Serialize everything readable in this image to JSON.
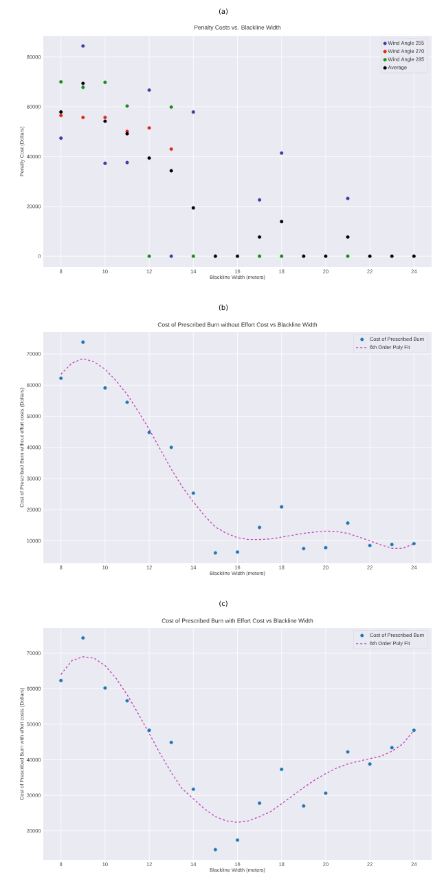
{
  "chart_data": [
    {
      "type": "scatter",
      "title": "Penalty Costs vs. Blackline Width",
      "xlabel": "Blackline Width (meters)",
      "ylabel": "Penalty Cost (Dollars)",
      "annotations": [
        "(a)"
      ],
      "xlim": [
        7.2,
        24.8
      ],
      "xticks": [
        8,
        10,
        12,
        14,
        16,
        18,
        20,
        22,
        24
      ],
      "ylim": [
        -4400,
        88500
      ],
      "yticks": [
        0,
        20000,
        40000,
        60000,
        80000
      ],
      "grid": true,
      "legend": "top right",
      "marker": "circle",
      "series": [
        {
          "name": "Wind Angle 255",
          "color": "#3a3fa8",
          "x": [
            8,
            9,
            10,
            11,
            12,
            13,
            14,
            17,
            18,
            21
          ],
          "values": [
            47400,
            84400,
            37300,
            37600,
            66700,
            0,
            57900,
            22600,
            41400,
            23200
          ]
        },
        {
          "name": "Wind Angle 270",
          "color": "#e0261e",
          "x": [
            8,
            9,
            10,
            11,
            12,
            13
          ],
          "values": [
            56500,
            55700,
            55700,
            50100,
            51500,
            43000
          ]
        },
        {
          "name": "Wind Angle 285",
          "color": "#1a8a1a",
          "x": [
            8,
            9,
            10,
            11,
            12,
            13,
            14,
            17,
            18,
            21
          ],
          "values": [
            70000,
            67800,
            69800,
            60300,
            0,
            59900,
            0,
            0,
            0,
            0
          ]
        },
        {
          "name": "Average",
          "color": "#000000",
          "x": [
            8,
            9,
            10,
            11,
            12,
            13,
            14,
            15,
            16,
            17,
            18,
            19,
            20,
            21,
            22,
            23,
            24
          ],
          "values": [
            57900,
            69400,
            54200,
            49200,
            39400,
            34300,
            19400,
            0,
            0,
            7700,
            13900,
            0,
            0,
            7700,
            0,
            0,
            0
          ]
        }
      ]
    },
    {
      "type": "scatter",
      "title": "Cost of Prescribed Burn without Effort Cost vs Blackline Width",
      "xlabel": "Blackline Width (meters)",
      "ylabel": "Cost of Prescribed Burn without effort costs (Dollars)",
      "annotations": [
        "(b)"
      ],
      "xlim": [
        7.2,
        24.8
      ],
      "xticks": [
        8,
        10,
        12,
        14,
        16,
        18,
        20,
        22,
        24
      ],
      "ylim": [
        2800,
        77100
      ],
      "yticks": [
        10000,
        20000,
        30000,
        40000,
        50000,
        60000,
        70000
      ],
      "grid": true,
      "legend": "top right",
      "marker": "circle",
      "x": [
        8,
        9,
        10,
        11,
        12,
        13,
        14,
        15,
        16,
        17,
        18,
        19,
        20,
        21,
        22,
        23,
        24
      ],
      "series": [
        {
          "name": "Cost of Prescribed Burn",
          "color": "#1f77b4",
          "values": [
            62200,
            73800,
            59100,
            54500,
            44800,
            40000,
            25300,
            6100,
            6400,
            14300,
            20900,
            7500,
            7800,
            15700,
            8500,
            8800,
            9100
          ]
        },
        {
          "name": "6th Order Poly Fit",
          "type": "line",
          "marker": "none",
          "line_style": "dashed",
          "color": "#c43cba",
          "x": [
            8,
            8.5,
            9,
            9.5,
            10,
            10.5,
            11,
            11.5,
            12,
            12.5,
            13,
            13.5,
            14,
            14.5,
            15,
            15.5,
            16,
            16.5,
            17,
            17.5,
            18,
            18.5,
            19,
            19.5,
            20,
            20.5,
            21,
            21.5,
            22,
            22.5,
            23,
            23.5,
            24
          ],
          "values": [
            63500,
            67100,
            68500,
            67500,
            65100,
            61400,
            57000,
            51600,
            45800,
            39400,
            33000,
            27300,
            22500,
            18100,
            14400,
            12400,
            11000,
            10400,
            10400,
            10600,
            11200,
            11800,
            12400,
            12800,
            13100,
            13000,
            12400,
            11200,
            10000,
            8700,
            7600,
            7600,
            9100
          ]
        }
      ]
    },
    {
      "type": "scatter",
      "title": "Cost of Prescribed Burn with Effort Cost vs Blackline Width",
      "xlabel": "Blackline Width (meters)",
      "ylabel": "Cost of Prescribed Burn with effort costs (Dollars)",
      "annotations": [
        "(c)"
      ],
      "xlim": [
        7.2,
        24.8
      ],
      "xticks": [
        8,
        10,
        12,
        14,
        16,
        18,
        20,
        22,
        24
      ],
      "ylim": [
        11800,
        77100
      ],
      "yticks": [
        20000,
        30000,
        40000,
        50000,
        60000,
        70000
      ],
      "grid": true,
      "legend": "top right",
      "marker": "circle",
      "x": [
        8,
        9,
        10,
        11,
        12,
        13,
        14,
        15,
        16,
        17,
        18,
        19,
        20,
        21,
        22,
        23,
        24
      ],
      "series": [
        {
          "name": "Cost of Prescribed Burn",
          "color": "#1f77b4",
          "values": [
            62300,
            74300,
            60200,
            56600,
            48300,
            44900,
            31700,
            14700,
            17400,
            27800,
            37300,
            27000,
            30600,
            42200,
            38800,
            43400,
            48300
          ]
        },
        {
          "name": "6th Order Poly Fit",
          "type": "line",
          "marker": "none",
          "line_style": "dashed",
          "color": "#c43cba",
          "x": [
            8,
            8.5,
            9,
            9.5,
            10,
            10.5,
            11,
            11.5,
            12,
            12.5,
            13,
            13.5,
            14,
            14.5,
            15,
            15.5,
            16,
            16.5,
            17,
            17.5,
            18,
            18.5,
            19,
            19.5,
            20,
            20.5,
            21,
            21.5,
            22,
            22.5,
            23,
            23.5,
            24
          ],
          "values": [
            64000,
            67900,
            69000,
            68600,
            66500,
            62900,
            58300,
            53000,
            47400,
            41700,
            36400,
            31800,
            29000,
            26200,
            24000,
            22800,
            22400,
            22800,
            24000,
            25400,
            27600,
            29900,
            32200,
            34300,
            36100,
            37700,
            38800,
            39600,
            40300,
            41000,
            42400,
            44500,
            48300
          ]
        }
      ]
    }
  ]
}
